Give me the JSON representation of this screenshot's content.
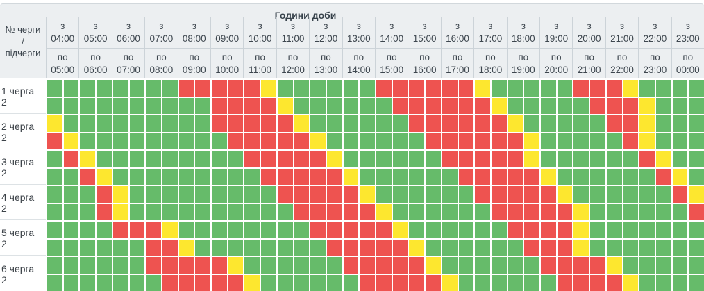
{
  "title": "Години доби",
  "corner": {
    "line1": "№ черги",
    "line2": "/",
    "line3": "підчерги"
  },
  "time_prefix_from": "з",
  "time_prefix_to": "по",
  "hours": [
    {
      "from": "04:00",
      "to": "05:00"
    },
    {
      "from": "05:00",
      "to": "06:00"
    },
    {
      "from": "06:00",
      "to": "07:00"
    },
    {
      "from": "07:00",
      "to": "08:00"
    },
    {
      "from": "08:00",
      "to": "09:00"
    },
    {
      "from": "09:00",
      "to": "10:00"
    },
    {
      "from": "10:00",
      "to": "11:00"
    },
    {
      "from": "11:00",
      "to": "12:00"
    },
    {
      "from": "12:00",
      "to": "13:00"
    },
    {
      "from": "13:00",
      "to": "14:00"
    },
    {
      "from": "14:00",
      "to": "15:00"
    },
    {
      "from": "15:00",
      "to": "16:00"
    },
    {
      "from": "16:00",
      "to": "17:00"
    },
    {
      "from": "17:00",
      "to": "18:00"
    },
    {
      "from": "18:00",
      "to": "19:00"
    },
    {
      "from": "19:00",
      "to": "20:00"
    },
    {
      "from": "20:00",
      "to": "21:00"
    },
    {
      "from": "21:00",
      "to": "22:00"
    },
    {
      "from": "22:00",
      "to": "23:00"
    },
    {
      "from": "23:00",
      "to": "00:00"
    }
  ],
  "colors": {
    "power_on": "#66bb6a",
    "outage": "#ee5350",
    "possible_outage": "#fde72f"
  },
  "cell_legend": {
    "G": "power_on",
    "R": "outage",
    "Y": "possible_outage"
  },
  "slot_minutes": 30,
  "queues": [
    {
      "name": "1 черга",
      "subqueue": "2",
      "schedule": [
        "GGGGGGGGRRRRRYGGGGGGRRRRRRYGGGGGRRRYGGGG",
        "GGGGGGGGGGRRRRYGGGGGGRRRRRRYGGGGGRRRYGGG"
      ]
    },
    {
      "name": "2 черга",
      "subqueue": "2",
      "schedule": [
        "YGGGGGGGGGRRRRRYGGGGGGRRRRRRYGGGGGRRYGGG",
        "RYGGGGGGGGGRRRRRYGGGGGGRRRRRRYGGGGGRYGGG"
      ]
    },
    {
      "name": "3 черга",
      "subqueue": "2",
      "schedule": [
        "GRYGGGGGGGGGRRRRRYGGGGGGRRRRRYGGGGGGRYGG",
        "GGRYGGGGGGGGGRRRRRYGGGGGGRRRRRYGGGGGGRYG"
      ]
    },
    {
      "name": "4 черга",
      "subqueue": "2",
      "schedule": [
        "GGGRYGGGGGGGGGRRRRRYGGGGGGRRRRRYGGGGGGRY",
        "GGGRYGGGGGGGGGGRRRRRYGGGGGGRRRRRYGGGGGGR"
      ]
    },
    {
      "name": "5 черга",
      "subqueue": "2",
      "schedule": [
        "GGGGRRRYGGGGGGGGRRRRRYGGGGGGRRRRYGGGGGGG",
        "GGGGGGRRYGGGGGGGGRRRRRYGGGGGGRRRYGGGGGGG"
      ]
    },
    {
      "name": "6 черга",
      "subqueue": "2",
      "schedule": [
        "GGGGGGRRRRRYGGGGGGRRRRRYGGGGGGRRRRYGGGGG",
        "GGGGGGGRRRRRYGGGGGGRRRRRYGGGGGGRRRRYGGGG"
      ]
    }
  ]
}
